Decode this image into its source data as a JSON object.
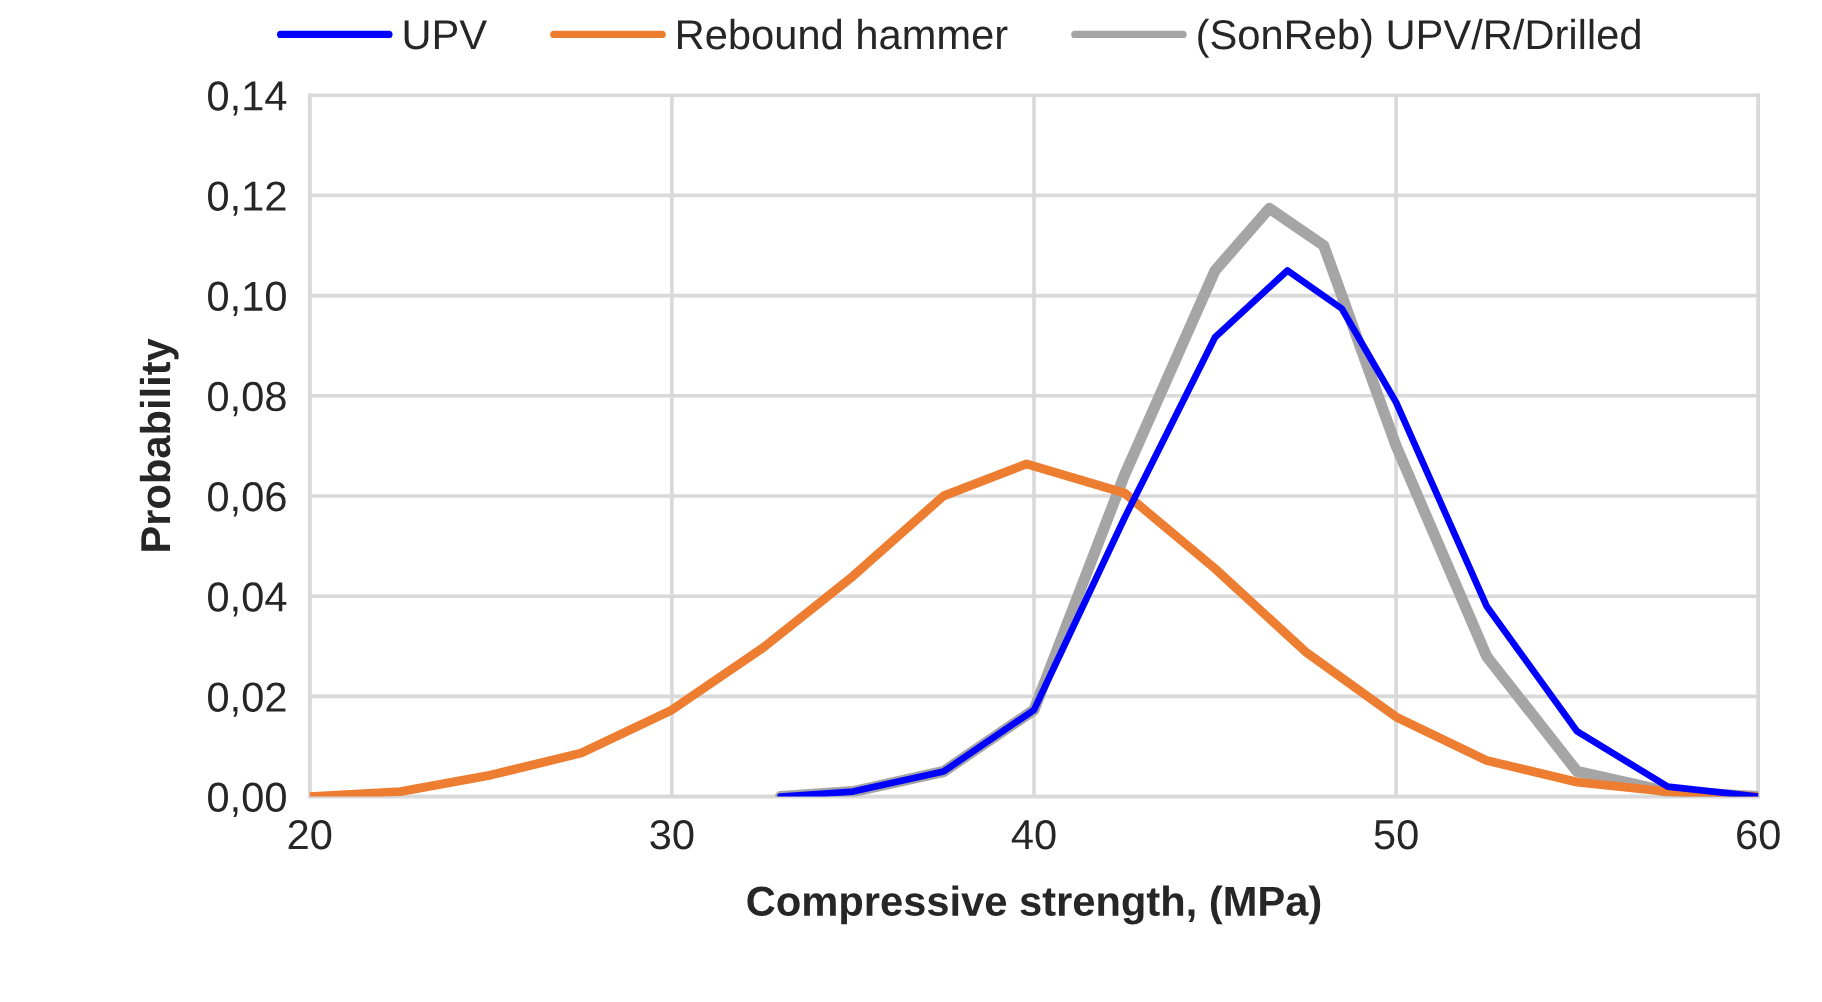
{
  "chart_data": {
    "type": "line",
    "xlabel": "Compressive strength, (MPa)",
    "ylabel": "Probability",
    "xlim": [
      20,
      60
    ],
    "xticks": [
      20,
      30,
      40,
      50,
      60
    ],
    "ylim": [
      0,
      0.14
    ],
    "yticks": [
      {
        "value": 0,
        "label": "0,00"
      },
      {
        "value": 0.02,
        "label": "0,02"
      },
      {
        "value": 0.04,
        "label": "0,04"
      },
      {
        "value": 0.06,
        "label": "0,06"
      },
      {
        "value": 0.08,
        "label": "0,08"
      },
      {
        "value": 0.1,
        "label": "0,10"
      },
      {
        "value": 0.12,
        "label": "0,12"
      },
      {
        "value": 0.14,
        "label": "0,14"
      }
    ],
    "grid": true,
    "legend": "top",
    "marker": "none",
    "line_style": "solid",
    "series": [
      {
        "name": "UPV",
        "color": "#0000ff",
        "x": [
          33,
          35,
          37.5,
          40,
          42.5,
          45,
          47,
          48.5,
          50,
          52.5,
          55,
          57.5,
          60
        ],
        "values": [
          0,
          0.001,
          0.005,
          0.0173,
          0.0556,
          0.0917,
          0.105,
          0.0974,
          0.0787,
          0.038,
          0.013,
          0.002,
          0
        ]
      },
      {
        "name": "Rebound hammer",
        "color": "#ed7d31",
        "x": [
          20,
          22.5,
          25,
          27.5,
          30,
          32.5,
          35,
          37.5,
          39.8,
          42.5,
          45,
          47.5,
          50,
          52.5,
          55,
          57.5,
          60
        ],
        "values": [
          0,
          0.001,
          0.0043,
          0.0087,
          0.0173,
          0.0296,
          0.044,
          0.06,
          0.0664,
          0.0606,
          0.0455,
          0.0289,
          0.0159,
          0.0072,
          0.0029,
          0.001,
          0
        ]
      },
      {
        "name": "(SonReb) UPV/R/Drilled",
        "color": "#a5a5a5",
        "x": [
          33,
          35,
          37.5,
          40,
          42.5,
          45,
          46.5,
          48,
          50,
          52.5,
          55,
          57.5,
          60
        ],
        "values": [
          0,
          0.001,
          0.005,
          0.0173,
          0.0642,
          0.105,
          0.1174,
          0.11,
          0.07,
          0.028,
          0.005,
          0.001,
          0
        ]
      }
    ]
  }
}
